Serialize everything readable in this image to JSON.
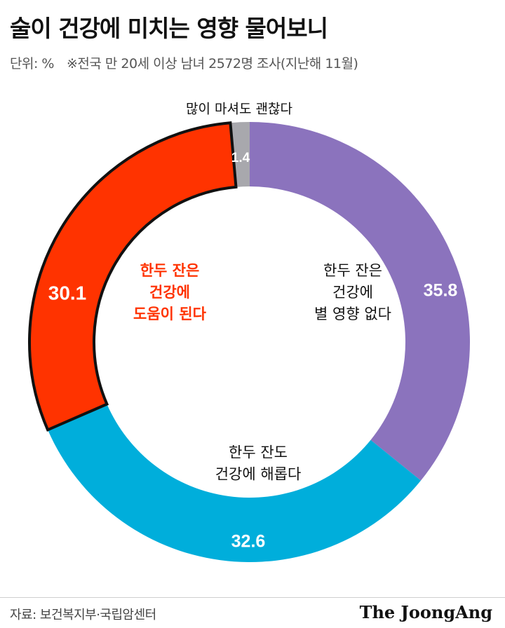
{
  "title": "술이 건강에 미치는 영향 물어보니",
  "unit_label": "단위: %",
  "survey_note": "※전국 만 20세 이상 남녀 2572명 조사(지난해 11월)",
  "source": "자료: 보건복지부·국립암센터",
  "brand": "The JoongAng",
  "colors": {
    "helpful": "#ff3300",
    "harmful": "#00aedb",
    "no_effect": "#8b73bd",
    "ok_drink_much": "#a8a8ad",
    "helpful_text": "#ff3300"
  },
  "chart_data": {
    "type": "pie",
    "style": "donut",
    "title": "술이 건강에 미치는 영향 물어보니",
    "unit": "%",
    "slices": [
      {
        "label": "한두 잔은 건강에 별 영향 없다",
        "lines": [
          "한두 잔은",
          "건강에",
          "별 영향 없다"
        ],
        "value": 35.8,
        "value_label": "35.8",
        "color": "#8b73bd"
      },
      {
        "label": "한두 잔도 건강에 해롭다",
        "lines": [
          "한두 잔도",
          "건강에 해롭다"
        ],
        "value": 32.6,
        "value_label": "32.6",
        "color": "#00aedb"
      },
      {
        "label": "한두 잔은 건강에 도움이 된다",
        "lines": [
          "한두 잔은",
          "건강에",
          "도움이 된다"
        ],
        "value": 30.1,
        "value_label": "30.1",
        "color": "#ff3300",
        "highlight": true
      },
      {
        "label": "많이 마셔도 괜찮다",
        "lines": [
          "많이 마셔도 괜찮다"
        ],
        "value": 1.4,
        "value_label": "1.4",
        "color": "#a8a8ad"
      }
    ]
  }
}
